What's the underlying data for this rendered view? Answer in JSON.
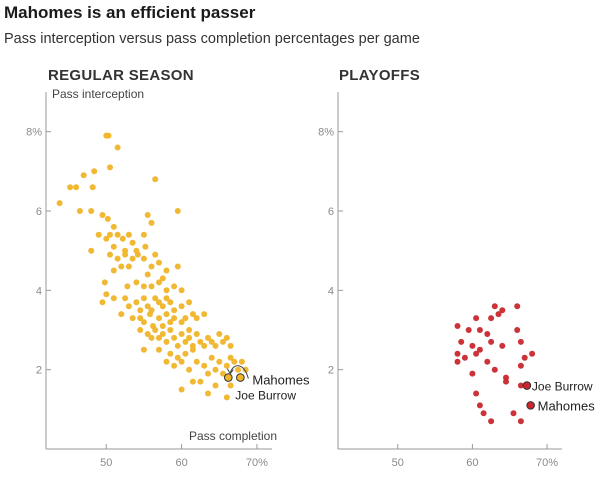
{
  "header": {
    "title": "Mahomes is an efficient passer",
    "subtitle": "Pass interception versus pass completion percentages per game"
  },
  "colors": {
    "regular_season": "#f0b428",
    "playoffs": "#c8282d",
    "axis": "#9a9a9a",
    "tick_text": "#8a8a8a"
  },
  "chart_data": [
    {
      "type": "scatter",
      "panel_title": "REGULAR SEASON",
      "xlabel": "Pass completion",
      "ylabel": "Pass interception",
      "xlim": [
        42,
        72
      ],
      "ylim": [
        0,
        9
      ],
      "x_ticks": [
        50,
        60,
        70
      ],
      "x_tick_labels": [
        "50",
        "60",
        "70%"
      ],
      "y_ticks": [
        2,
        4,
        6,
        8
      ],
      "y_tick_labels": [
        "2",
        "4",
        "6",
        "8%"
      ],
      "color": "#f0b428",
      "points": [
        [
          43.8,
          6.2
        ],
        [
          45.2,
          6.6
        ],
        [
          46.0,
          6.6
        ],
        [
          47.0,
          6.9
        ],
        [
          46.5,
          6.0
        ],
        [
          48.2,
          6.6
        ],
        [
          48.4,
          7.0
        ],
        [
          48.0,
          6.0
        ],
        [
          50.0,
          7.9
        ],
        [
          50.3,
          7.9
        ],
        [
          51.5,
          7.6
        ],
        [
          50.5,
          7.1
        ],
        [
          56.5,
          6.8
        ],
        [
          59.5,
          6.0
        ],
        [
          49.5,
          5.9
        ],
        [
          50.2,
          5.8
        ],
        [
          51.0,
          5.6
        ],
        [
          50.5,
          5.4
        ],
        [
          51.5,
          5.4
        ],
        [
          52.2,
          5.3
        ],
        [
          53.0,
          5.4
        ],
        [
          55.0,
          5.4
        ],
        [
          55.5,
          5.9
        ],
        [
          56.0,
          5.7
        ],
        [
          53.5,
          5.2
        ],
        [
          54.0,
          5.0
        ],
        [
          55.2,
          5.1
        ],
        [
          49.0,
          5.4
        ],
        [
          50.0,
          5.3
        ],
        [
          51.0,
          5.1
        ],
        [
          48.0,
          5.0
        ],
        [
          52.5,
          5.0
        ],
        [
          50.5,
          4.9
        ],
        [
          51.5,
          4.8
        ],
        [
          52.5,
          4.9
        ],
        [
          53.5,
          4.8
        ],
        [
          54.2,
          4.9
        ],
        [
          55.0,
          4.8
        ],
        [
          56.5,
          4.9
        ],
        [
          57.0,
          4.7
        ],
        [
          51.0,
          4.5
        ],
        [
          52.0,
          4.6
        ],
        [
          53.0,
          4.6
        ],
        [
          55.5,
          4.4
        ],
        [
          56.0,
          4.6
        ],
        [
          58.0,
          4.5
        ],
        [
          59.5,
          4.6
        ],
        [
          49.8,
          4.2
        ],
        [
          52.8,
          4.1
        ],
        [
          54.0,
          4.2
        ],
        [
          55.0,
          4.1
        ],
        [
          56.0,
          4.1
        ],
        [
          57.0,
          4.2
        ],
        [
          57.5,
          4.3
        ],
        [
          58.0,
          4.0
        ],
        [
          59.0,
          4.1
        ],
        [
          60.0,
          4.0
        ],
        [
          50.0,
          3.9
        ],
        [
          51.0,
          3.8
        ],
        [
          52.5,
          3.8
        ],
        [
          53.0,
          3.6
        ],
        [
          54.0,
          3.7
        ],
        [
          54.5,
          3.5
        ],
        [
          55.0,
          3.8
        ],
        [
          55.5,
          3.6
        ],
        [
          56.0,
          3.5
        ],
        [
          56.5,
          3.8
        ],
        [
          57.0,
          3.7
        ],
        [
          57.5,
          3.6
        ],
        [
          58.0,
          3.8
        ],
        [
          58.5,
          3.7
        ],
        [
          59.0,
          3.5
        ],
        [
          60.0,
          3.6
        ],
        [
          61.0,
          3.7
        ],
        [
          61.5,
          3.4
        ],
        [
          49.5,
          3.7
        ],
        [
          52.0,
          3.4
        ],
        [
          53.5,
          3.3
        ],
        [
          54.5,
          3.3
        ],
        [
          55.0,
          3.2
        ],
        [
          55.8,
          3.4
        ],
        [
          56.2,
          3.1
        ],
        [
          57.0,
          3.3
        ],
        [
          57.5,
          3.1
        ],
        [
          58.0,
          3.4
        ],
        [
          58.5,
          3.2
        ],
        [
          59.0,
          3.3
        ],
        [
          60.0,
          3.2
        ],
        [
          60.5,
          3.3
        ],
        [
          61.0,
          3.0
        ],
        [
          62.0,
          3.3
        ],
        [
          63.0,
          3.4
        ],
        [
          54.5,
          3.0
        ],
        [
          55.5,
          2.9
        ],
        [
          56.0,
          2.8
        ],
        [
          56.5,
          3.0
        ],
        [
          57.0,
          2.8
        ],
        [
          57.5,
          2.9
        ],
        [
          58.0,
          2.7
        ],
        [
          58.5,
          3.0
        ],
        [
          59.0,
          2.8
        ],
        [
          59.5,
          2.6
        ],
        [
          60.0,
          2.9
        ],
        [
          60.5,
          2.7
        ],
        [
          61.0,
          2.8
        ],
        [
          61.5,
          2.6
        ],
        [
          62.0,
          2.9
        ],
        [
          62.5,
          2.7
        ],
        [
          63.0,
          2.6
        ],
        [
          63.5,
          2.8
        ],
        [
          64.0,
          2.7
        ],
        [
          64.5,
          2.6
        ],
        [
          65.0,
          2.9
        ],
        [
          65.5,
          2.7
        ],
        [
          66.0,
          2.8
        ],
        [
          66.5,
          2.6
        ],
        [
          55.0,
          2.5
        ],
        [
          57.0,
          2.5
        ],
        [
          58.5,
          2.4
        ],
        [
          59.5,
          2.3
        ],
        [
          60.5,
          2.4
        ],
        [
          61.5,
          2.5
        ],
        [
          58.0,
          2.2
        ],
        [
          59.0,
          2.1
        ],
        [
          60.0,
          2.2
        ],
        [
          61.0,
          2.0
        ],
        [
          62.0,
          2.2
        ],
        [
          63.0,
          2.1
        ],
        [
          63.5,
          1.9
        ],
        [
          64.0,
          2.3
        ],
        [
          64.5,
          2.0
        ],
        [
          65.0,
          2.2
        ],
        [
          65.5,
          1.9
        ],
        [
          66.0,
          2.1
        ],
        [
          66.5,
          2.3
        ],
        [
          67.0,
          2.2
        ],
        [
          67.5,
          2.0
        ],
        [
          68.0,
          2.2
        ],
        [
          68.5,
          2.0
        ],
        [
          61.5,
          1.7
        ],
        [
          62.5,
          1.7
        ],
        [
          64.5,
          1.6
        ],
        [
          66.5,
          1.6
        ],
        [
          60.0,
          1.5
        ],
        [
          63.5,
          1.4
        ],
        [
          66.0,
          1.3
        ]
      ],
      "annotations": [
        {
          "label": "Mahomes",
          "x": 67.8,
          "y": 1.8
        },
        {
          "label": "Joe Burrow",
          "x": 66.2,
          "y": 1.8
        }
      ]
    },
    {
      "type": "scatter",
      "panel_title": "PLAYOFFS",
      "xlabel": "",
      "ylabel": "",
      "xlim": [
        42,
        72
      ],
      "ylim": [
        0,
        9
      ],
      "x_ticks": [
        50,
        60,
        70
      ],
      "x_tick_labels": [
        "50",
        "60",
        "70%"
      ],
      "y_ticks": [
        2,
        4,
        6,
        8
      ],
      "y_tick_labels": [
        "2",
        "4",
        "6",
        "8%"
      ],
      "color": "#c8282d",
      "points": [
        [
          63.0,
          3.6
        ],
        [
          64.0,
          3.5
        ],
        [
          66.0,
          3.6
        ],
        [
          60.5,
          3.3
        ],
        [
          62.5,
          3.3
        ],
        [
          63.5,
          3.4
        ],
        [
          58.0,
          3.1
        ],
        [
          59.5,
          3.0
        ],
        [
          61.0,
          3.0
        ],
        [
          62.0,
          2.9
        ],
        [
          66.0,
          3.0
        ],
        [
          58.5,
          2.7
        ],
        [
          60.0,
          2.6
        ],
        [
          61.0,
          2.5
        ],
        [
          62.5,
          2.7
        ],
        [
          64.0,
          2.6
        ],
        [
          66.5,
          2.7
        ],
        [
          58.0,
          2.4
        ],
        [
          59.0,
          2.3
        ],
        [
          60.5,
          2.4
        ],
        [
          62.0,
          2.2
        ],
        [
          67.0,
          2.3
        ],
        [
          68.0,
          2.4
        ],
        [
          58.0,
          2.2
        ],
        [
          60.0,
          1.9
        ],
        [
          63.0,
          2.0
        ],
        [
          64.5,
          1.8
        ],
        [
          66.5,
          2.1
        ],
        [
          64.5,
          1.7
        ],
        [
          66.5,
          1.6
        ],
        [
          60.5,
          1.4
        ],
        [
          61.0,
          1.1
        ],
        [
          61.5,
          0.9
        ],
        [
          62.5,
          0.7
        ],
        [
          65.5,
          0.9
        ],
        [
          66.5,
          0.7
        ]
      ],
      "annotations": [
        {
          "label": "Joe Burrow",
          "x": 67.3,
          "y": 1.6
        },
        {
          "label": "Mahomes",
          "x": 67.8,
          "y": 1.1
        }
      ]
    }
  ]
}
